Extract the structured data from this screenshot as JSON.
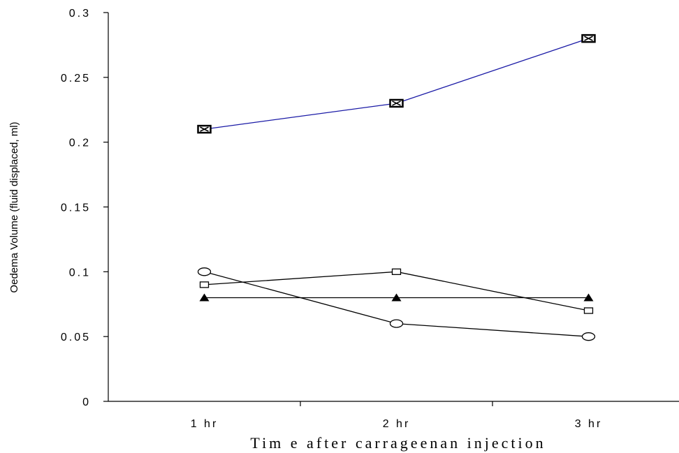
{
  "chart_data": {
    "type": "line",
    "title": "",
    "xlabel": "Tim e after carrageenan injection",
    "ylabel": "Oedema Volume (fluid displaced, ml)",
    "categories": [
      "1 hr",
      "2 hr",
      "3 hr"
    ],
    "ylim": [
      0,
      0.3
    ],
    "yticks": [
      0,
      0.05,
      0.1,
      0.15,
      0.2,
      0.25,
      0.3
    ],
    "ytick_labels": [
      "0",
      "0.05",
      "0.1",
      "0.15",
      "0.2",
      "0.25",
      "0.3"
    ],
    "grid": false,
    "legend": "none",
    "series": [
      {
        "values": [
          0.21,
          0.23,
          0.28
        ],
        "marker": "crossed-square",
        "color": "#1a1aa6"
      },
      {
        "values": [
          0.09,
          0.1,
          0.07
        ],
        "marker": "open-square",
        "color": "#000000"
      },
      {
        "values": [
          0.08,
          0.08,
          0.08
        ],
        "marker": "filled-triangle",
        "color": "#000000"
      },
      {
        "values": [
          0.1,
          0.06,
          0.05
        ],
        "marker": "open-ellipse",
        "color": "#000000"
      }
    ]
  }
}
